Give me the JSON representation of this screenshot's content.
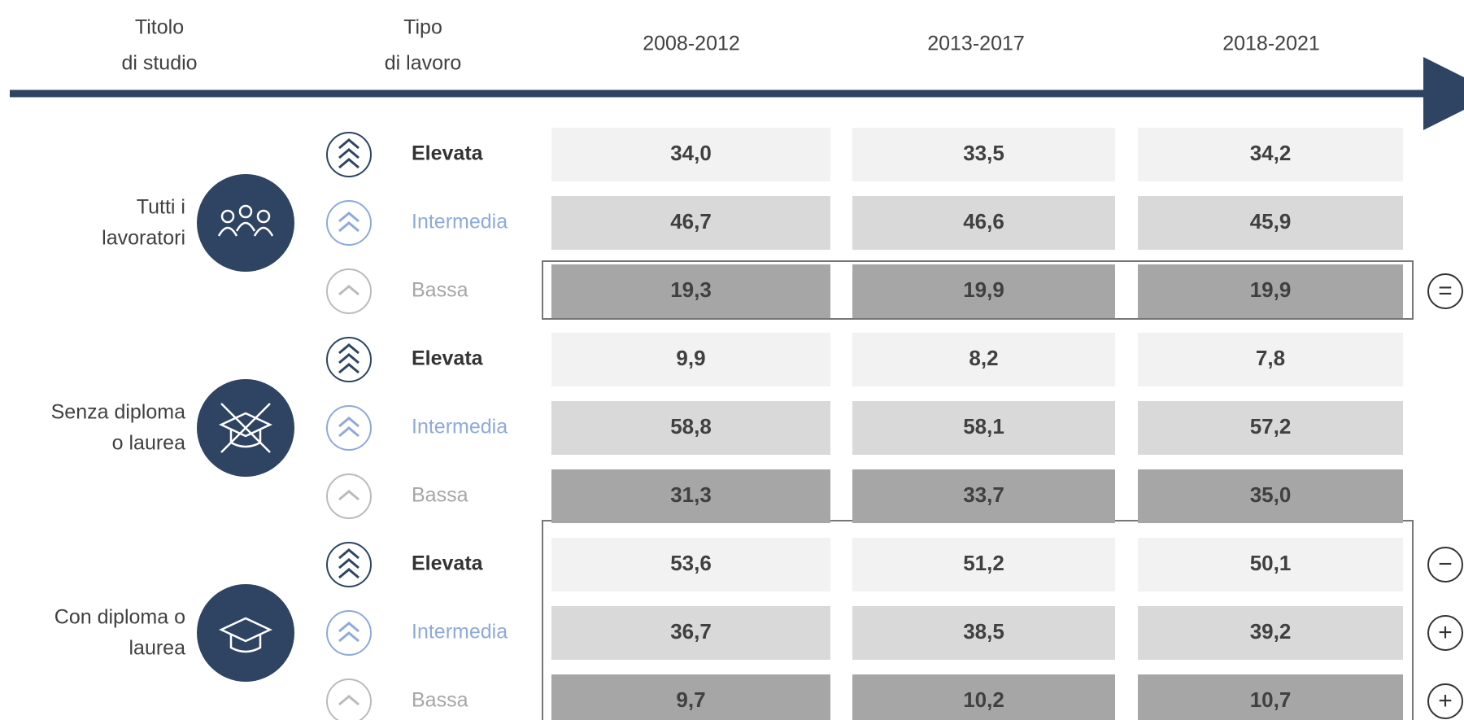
{
  "header": {
    "columns": [
      [
        "Titolo",
        "di studio"
      ],
      [
        "Tipo",
        "di lavoro"
      ],
      [
        "2008-2012"
      ],
      [
        "2013-2017"
      ],
      [
        "2018-2021"
      ]
    ]
  },
  "groups": [
    {
      "label": [
        "Tutti i",
        "lavoratori"
      ],
      "rows": [
        {
          "type": "Elevata",
          "values": [
            "34,0",
            "33,5",
            "34,2"
          ]
        },
        {
          "type": "Intermedia",
          "values": [
            "46,7",
            "46,6",
            "45,9"
          ]
        },
        {
          "type": "Bassa",
          "values": [
            "19,3",
            "19,9",
            "19,9"
          ],
          "marker": "="
        }
      ]
    },
    {
      "label": [
        "Senza diploma",
        "o laurea"
      ],
      "rows": [
        {
          "type": "Elevata",
          "values": [
            "9,9",
            "8,2",
            "7,8"
          ]
        },
        {
          "type": "Intermedia",
          "values": [
            "58,8",
            "58,1",
            "57,2"
          ]
        },
        {
          "type": "Bassa",
          "values": [
            "31,3",
            "33,7",
            "35,0"
          ]
        }
      ]
    },
    {
      "label": [
        "Con diploma o",
        "laurea"
      ],
      "rows": [
        {
          "type": "Elevata",
          "values": [
            "53,6",
            "51,2",
            "50,1"
          ],
          "marker": "−"
        },
        {
          "type": "Intermedia",
          "values": [
            "36,7",
            "38,5",
            "39,2"
          ],
          "marker": "+"
        },
        {
          "type": "Bassa",
          "values": [
            "9,7",
            "10,2",
            "10,7"
          ],
          "marker": "+"
        }
      ]
    }
  ]
}
